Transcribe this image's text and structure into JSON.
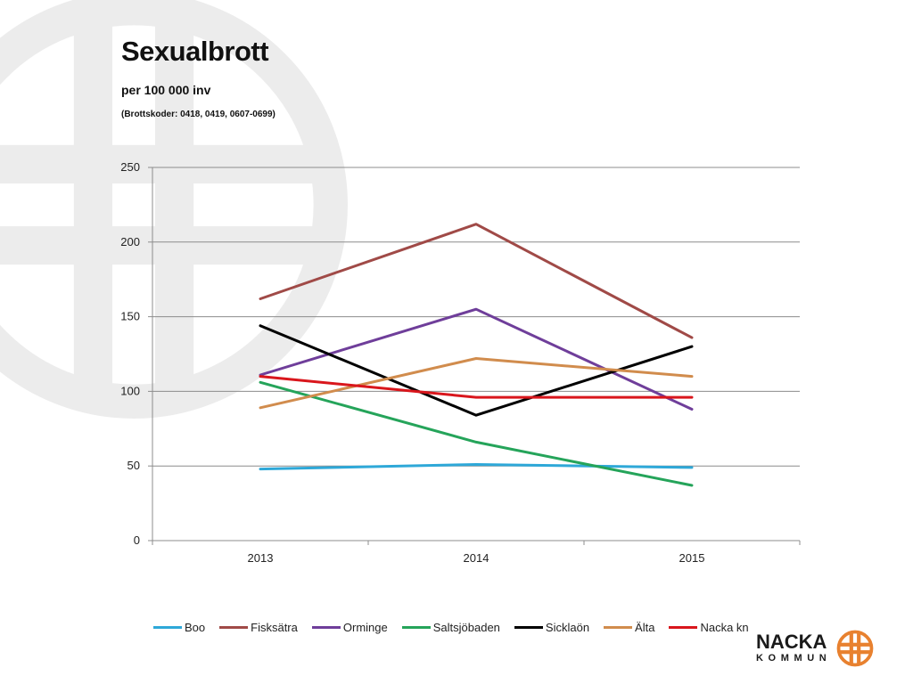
{
  "slide": {
    "title": "Sexualbrott",
    "subtitle": "per 100 000 inv",
    "codes": "(Brottskoder: 0418, 0419, 0607-0699)"
  },
  "logo": {
    "name": "NACKA",
    "sub": "KOMMUN",
    "color": "#e8812f"
  },
  "chart_data": {
    "type": "line",
    "categories": [
      "2013",
      "2014",
      "2015"
    ],
    "ylim": [
      0,
      250
    ],
    "yticks": [
      0,
      50,
      100,
      150,
      200,
      250
    ],
    "grid": true,
    "legend_position": "bottom",
    "xlabel": "",
    "ylabel": "",
    "series": [
      {
        "name": "Boo",
        "color": "#2ea8d8",
        "values": [
          48,
          51,
          49
        ]
      },
      {
        "name": "Fisksätra",
        "color": "#a04a47",
        "values": [
          162,
          212,
          136
        ]
      },
      {
        "name": "Orminge",
        "color": "#6f3e9a",
        "values": [
          111,
          155,
          88
        ]
      },
      {
        "name": "Saltsjöbaden",
        "color": "#25a45a",
        "values": [
          106,
          66,
          37
        ]
      },
      {
        "name": "Sicklaön",
        "color": "#000000",
        "values": [
          144,
          84,
          130
        ]
      },
      {
        "name": "Älta",
        "color": "#d18c4d",
        "values": [
          89,
          122,
          110
        ]
      },
      {
        "name": "Nacka kn",
        "color": "#d9161c",
        "values": [
          110,
          96,
          96
        ]
      }
    ]
  }
}
